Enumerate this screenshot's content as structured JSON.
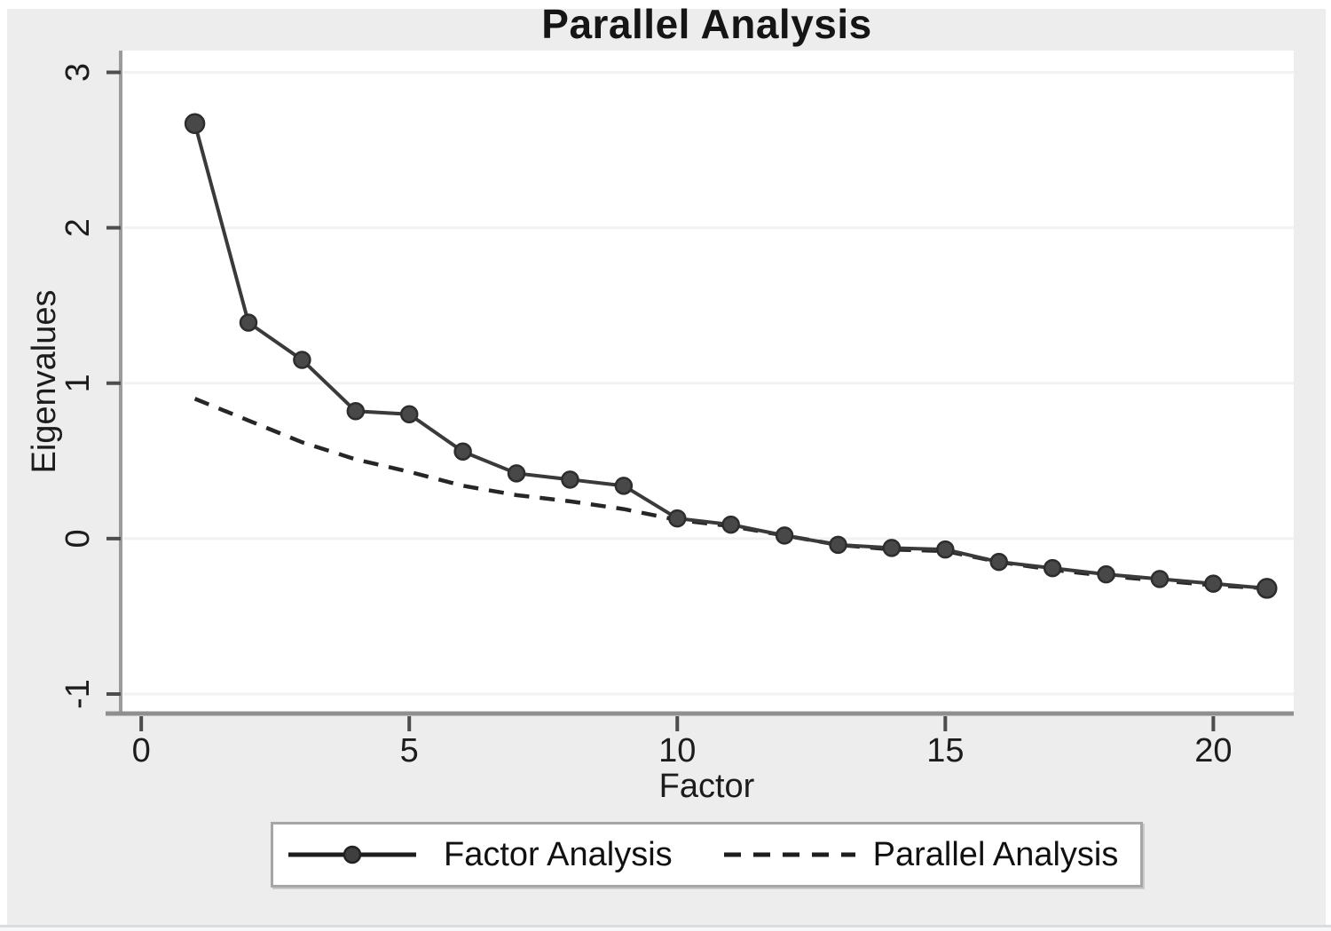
{
  "title": "Parallel Analysis",
  "colors": {
    "background": "#ededed",
    "plot_bg": "#ffffff",
    "gridline": "#f2f2f2",
    "axis_line": "#9b9b9b",
    "tick_mark": "#4d4d4d",
    "text": "#1c1c1c",
    "solid_line": "#3a3a3a",
    "marker_fill": "#484848",
    "marker_stroke": "#2d2d2d",
    "dashed_line": "#262626"
  },
  "chart_data": {
    "type": "line",
    "title": "Parallel Analysis",
    "xlabel": "Factor",
    "ylabel": "Eigenvalues",
    "x": [
      1,
      2,
      3,
      4,
      5,
      6,
      7,
      8,
      9,
      10,
      11,
      12,
      13,
      14,
      15,
      16,
      17,
      18,
      19,
      20,
      21
    ],
    "series": [
      {
        "name": "Factor Analysis",
        "style": "solid-with-markers",
        "values": [
          2.67,
          1.39,
          1.15,
          0.82,
          0.8,
          0.56,
          0.42,
          0.38,
          0.34,
          0.13,
          0.09,
          0.02,
          -0.04,
          -0.06,
          -0.07,
          -0.15,
          -0.19,
          -0.23,
          -0.26,
          -0.29,
          -0.32
        ]
      },
      {
        "name": "Parallel Analysis",
        "style": "dashed",
        "values": [
          0.9,
          0.76,
          0.62,
          0.51,
          0.43,
          0.34,
          0.28,
          0.24,
          0.19,
          0.12,
          0.08,
          0.02,
          -0.04,
          -0.07,
          -0.08,
          -0.15,
          -0.2,
          -0.24,
          -0.27,
          -0.3,
          -0.32
        ]
      }
    ],
    "xticks": [
      0,
      5,
      10,
      15,
      20
    ],
    "yticks": [
      3,
      2,
      1,
      0,
      -1
    ],
    "xlim": [
      -0.4,
      21.5
    ],
    "ylim": [
      -1.12,
      3.14
    ],
    "grid": "horizontal",
    "legend_position": "bottom"
  },
  "legend": {
    "items": [
      {
        "label": "Factor Analysis"
      },
      {
        "label": "Parallel Analysis"
      }
    ]
  }
}
